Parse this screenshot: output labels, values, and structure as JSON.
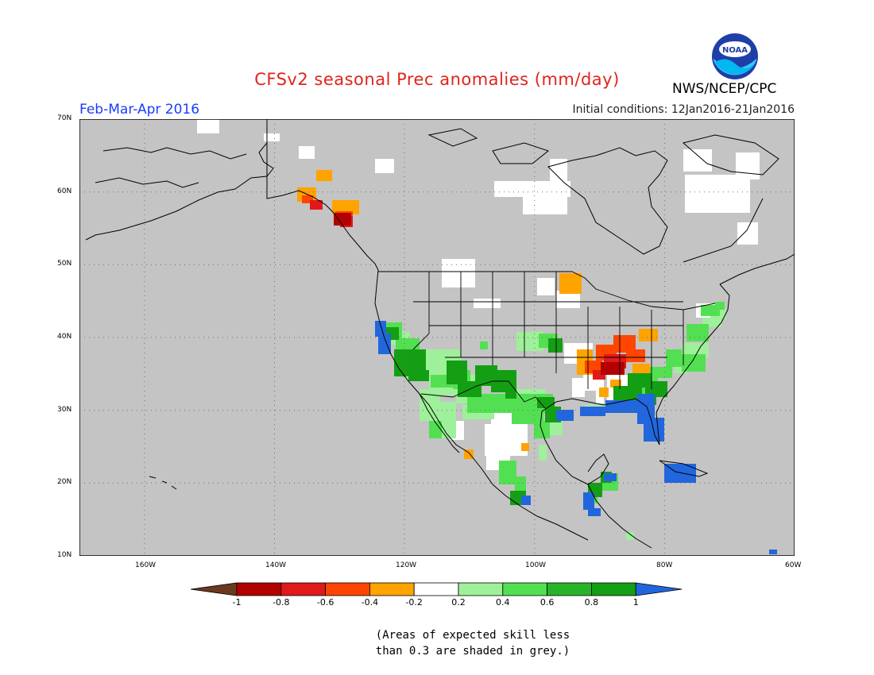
{
  "title": "CFSv2 seasonal Prec anomalies (mm/day)",
  "season": "Feb-Mar-Apr 2016",
  "initial_conditions": "Initial conditions: 12Jan2016-21Jan2016",
  "agency": "NWS/NCEP/CPC",
  "logo_text": "NOAA",
  "footnote": [
    "(Areas of expected skill less",
    "than 0.3 are shaded in grey.)"
  ],
  "lat_labels": [
    "70N",
    "60N",
    "50N",
    "40N",
    "30N",
    "20N",
    "10N"
  ],
  "lon_labels": [
    "160W",
    "140W",
    "120W",
    "100W",
    "80W",
    "60W"
  ],
  "colorbar": {
    "labels": [
      "-1",
      "-0.8",
      "-0.6",
      "-0.4",
      "-0.2",
      "0.2",
      "0.4",
      "0.6",
      "0.8",
      "1"
    ],
    "colors": [
      "#6b3a1e",
      "#b30000",
      "#e01a1a",
      "#ff4500",
      "#ffa300",
      "#ffffff",
      "#9ff09a",
      "#52e052",
      "#28b428",
      "#149e14",
      "#2266dd"
    ]
  },
  "colors": {
    "grey": "#c4c4c4",
    "land_grey": "#c4c4c4"
  }
}
